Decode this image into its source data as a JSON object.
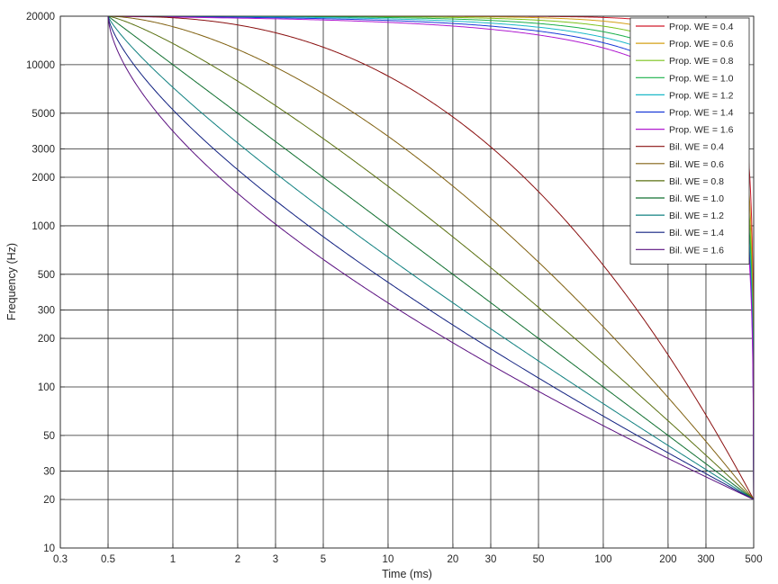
{
  "chart_data": {
    "type": "line",
    "title": "",
    "xlabel": "Time (ms)",
    "ylabel": "Frequency (Hz)",
    "x_scale": "log",
    "y_scale": "log",
    "xlim": [
      0.3,
      500
    ],
    "ylim": [
      10,
      20000
    ],
    "grid": true,
    "legend_position": "top-right",
    "x_ticks": [
      0.3,
      0.5,
      1,
      2,
      3,
      5,
      10,
      20,
      30,
      50,
      100,
      200,
      300,
      500
    ],
    "x_tick_labels": [
      "0.3",
      "0.5",
      "1",
      "2",
      "3",
      "5",
      "10",
      "20",
      "30",
      "50",
      "100",
      "200",
      "300",
      "500"
    ],
    "y_ticks": [
      10,
      20,
      30,
      50,
      100,
      200,
      300,
      500,
      1000,
      2000,
      3000,
      5000,
      10000,
      20000
    ],
    "y_tick_labels": [
      "10",
      "20",
      "30",
      "50",
      "100",
      "200",
      "300",
      "500",
      "1000",
      "2000",
      "3000",
      "5000",
      "10000",
      "20000"
    ],
    "start_point": {
      "x": 0.5,
      "y": 20000
    },
    "end_point": {
      "x": 500,
      "y": 20
    },
    "series": [
      {
        "name": "Prop. WE = 0.4",
        "family": "Prop.",
        "we": 0.4,
        "color": "#d11a2a"
      },
      {
        "name": "Prop. WE = 0.6",
        "family": "Prop.",
        "we": 0.6,
        "color": "#d4a017"
      },
      {
        "name": "Prop. WE = 0.8",
        "family": "Prop.",
        "we": 0.8,
        "color": "#7ac21a"
      },
      {
        "name": "Prop. WE = 1.0",
        "family": "Prop.",
        "we": 1.0,
        "color": "#1ab04a"
      },
      {
        "name": "Prop. WE = 1.2",
        "family": "Prop.",
        "we": 1.2,
        "color": "#1ab8c8"
      },
      {
        "name": "Prop. WE = 1.4",
        "family": "Prop.",
        "we": 1.4,
        "color": "#1a3ad8"
      },
      {
        "name": "Prop. WE = 1.6",
        "family": "Prop.",
        "we": 1.6,
        "color": "#b01ad0"
      },
      {
        "name": "Bil. WE = 0.4",
        "family": "Bil.",
        "we": 0.4,
        "color": "#8a1010"
      },
      {
        "name": "Bil. WE = 0.6",
        "family": "Bil.",
        "we": 0.6,
        "color": "#806010"
      },
      {
        "name": "Bil. WE = 0.8",
        "family": "Bil.",
        "we": 0.8,
        "color": "#5a7010"
      },
      {
        "name": "Bil. WE = 1.0",
        "family": "Bil.",
        "we": 1.0,
        "color": "#107030"
      },
      {
        "name": "Bil. WE = 1.2",
        "family": "Bil.",
        "we": 1.2,
        "color": "#108080"
      },
      {
        "name": "Bil. WE = 1.4",
        "family": "Bil.",
        "we": 1.4,
        "color": "#102080"
      },
      {
        "name": "Bil. WE = 1.6",
        "family": "Bil.",
        "we": 1.6,
        "color": "#5a1080"
      }
    ]
  }
}
